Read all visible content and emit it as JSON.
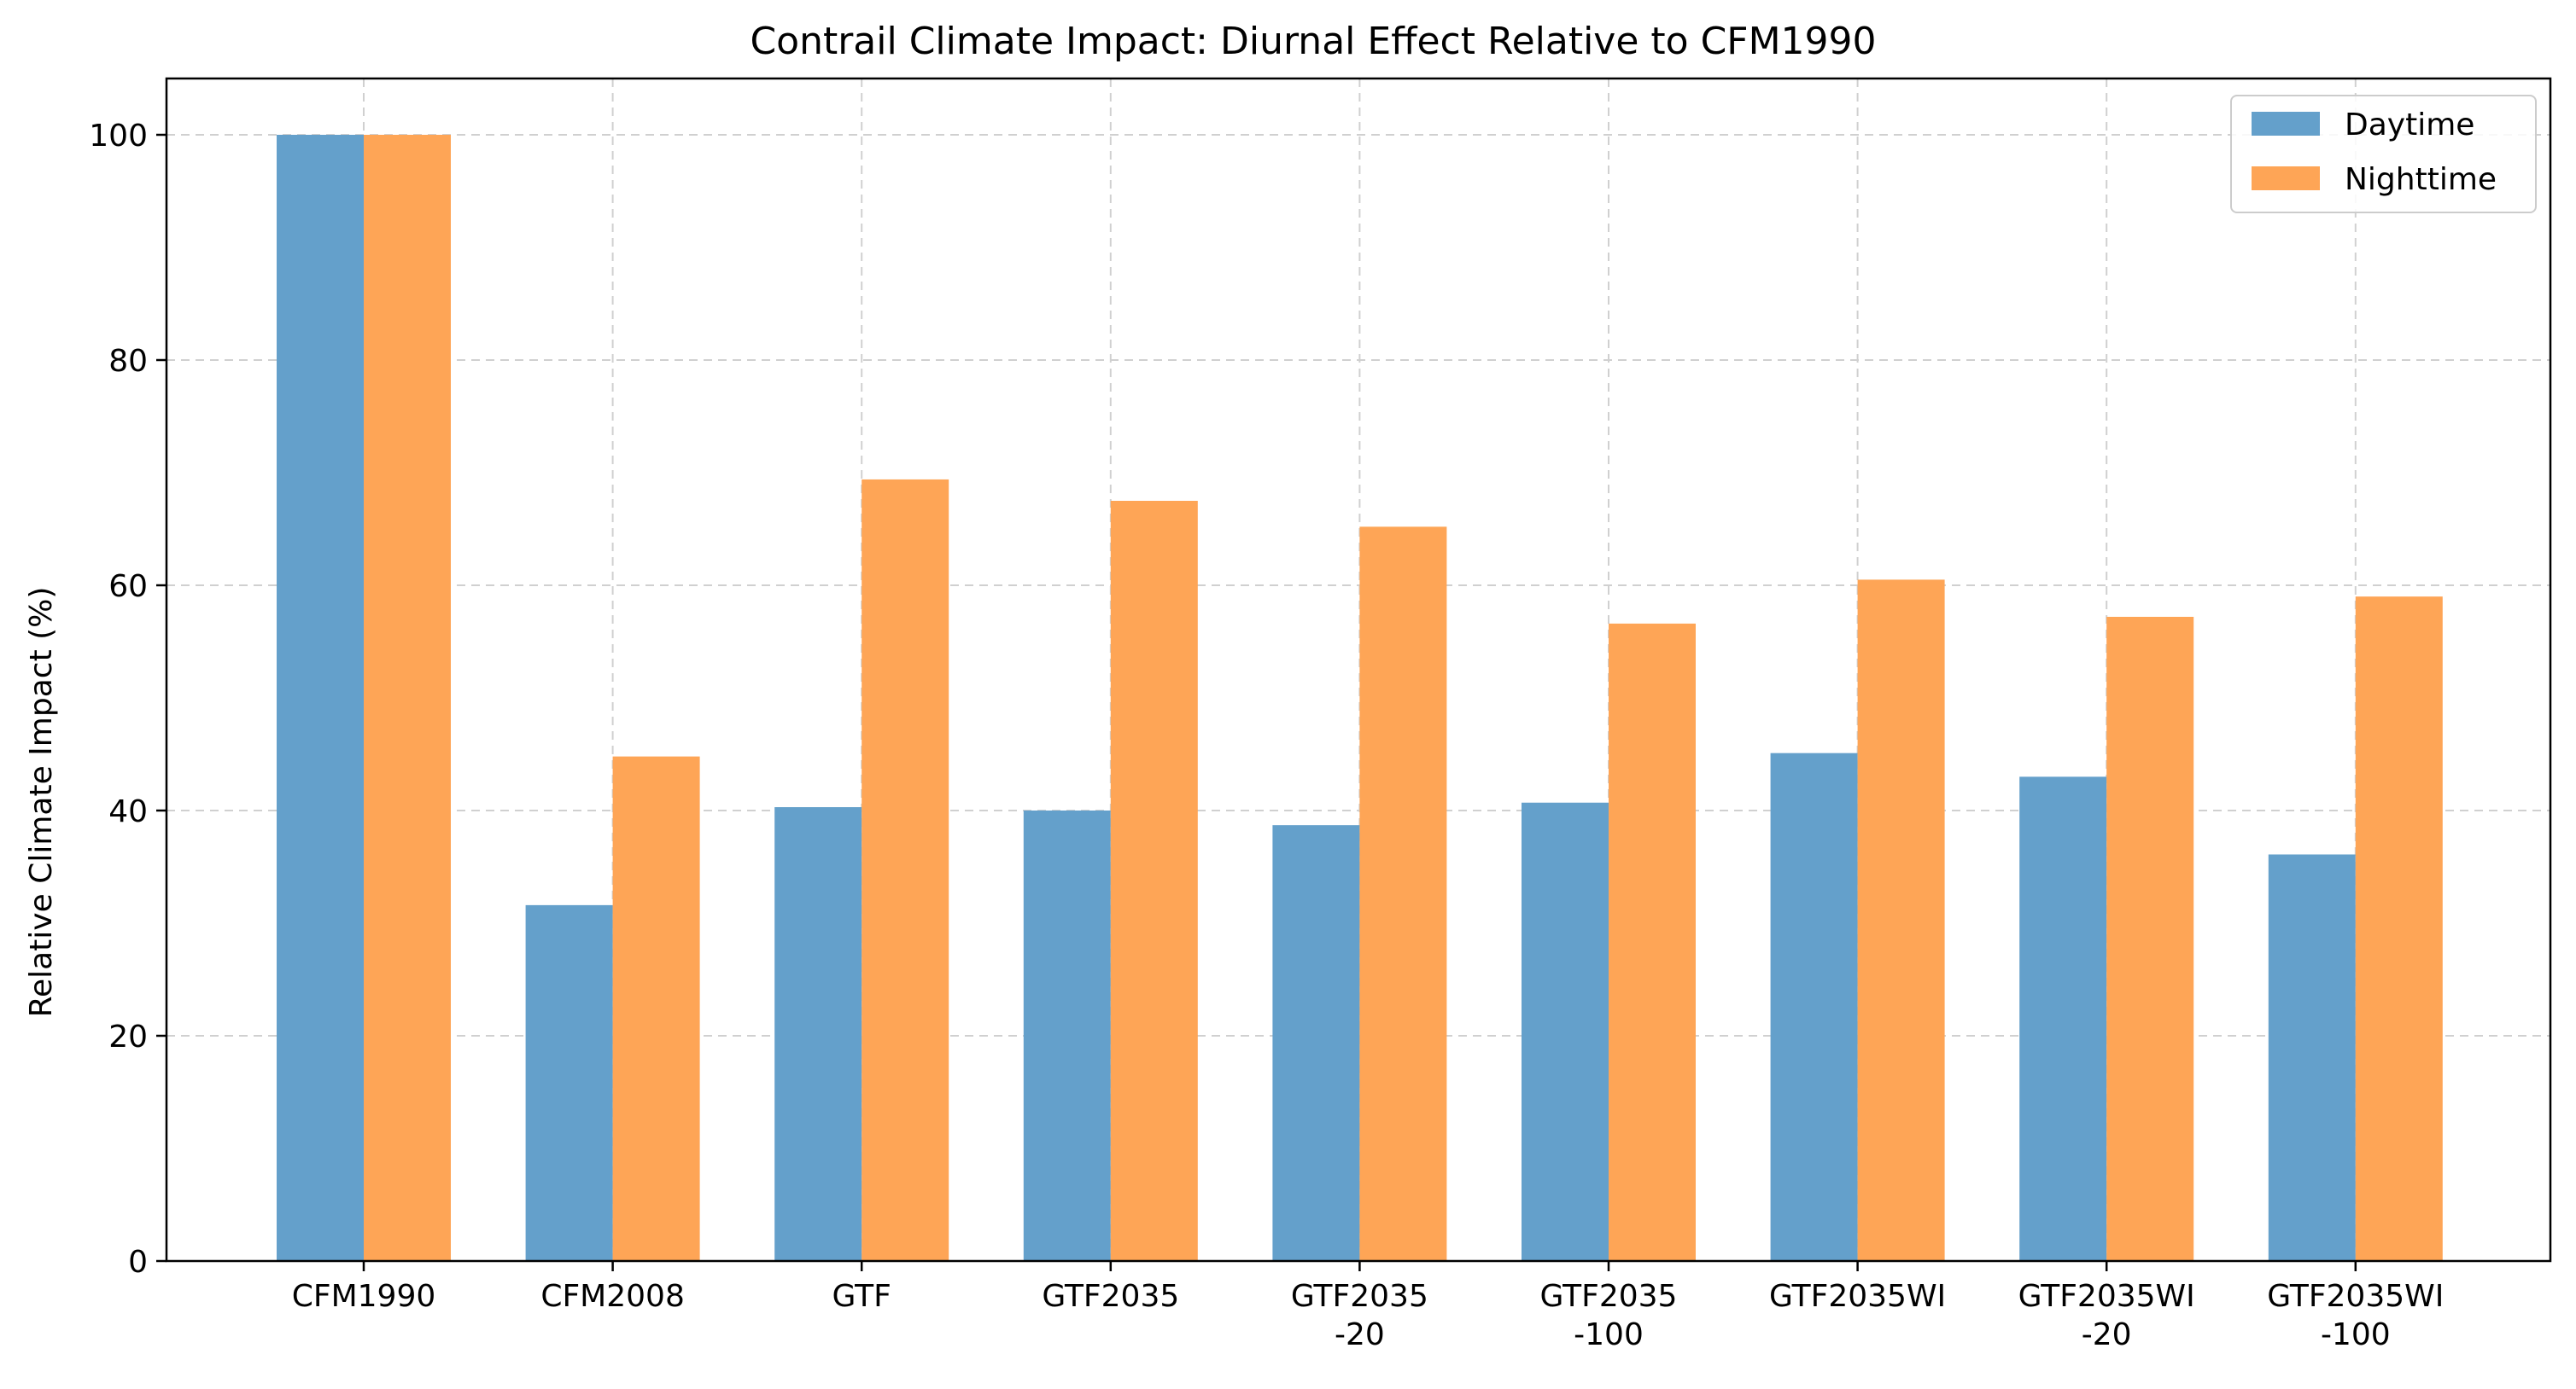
{
  "chart_data": {
    "type": "bar",
    "title": "Contrail Climate Impact: Diurnal Effect Relative to CFM1990",
    "xlabel": "",
    "ylabel": "Relative Climate Impact (%)",
    "ylim": [
      0,
      105
    ],
    "yticks": [
      0,
      20,
      40,
      60,
      80,
      100
    ],
    "grid": true,
    "legend_position": "top-right",
    "categories": [
      [
        "CFM1990"
      ],
      [
        "CFM2008"
      ],
      [
        "GTF"
      ],
      [
        "GTF2035"
      ],
      [
        "GTF2035",
        "-20"
      ],
      [
        "GTF2035",
        "-100"
      ],
      [
        "GTF2035WI"
      ],
      [
        "GTF2035WI",
        "-20"
      ],
      [
        "GTF2035WI",
        "-100"
      ]
    ],
    "series": [
      {
        "name": "Daytime",
        "color": "#64a0cb",
        "values": [
          100,
          31.6,
          40.3,
          40.0,
          38.7,
          40.7,
          45.1,
          43.0,
          36.1
        ]
      },
      {
        "name": "Nighttime",
        "color": "#fea556",
        "values": [
          100,
          44.8,
          69.4,
          67.5,
          65.2,
          56.6,
          60.5,
          57.2,
          59.0
        ]
      }
    ]
  }
}
